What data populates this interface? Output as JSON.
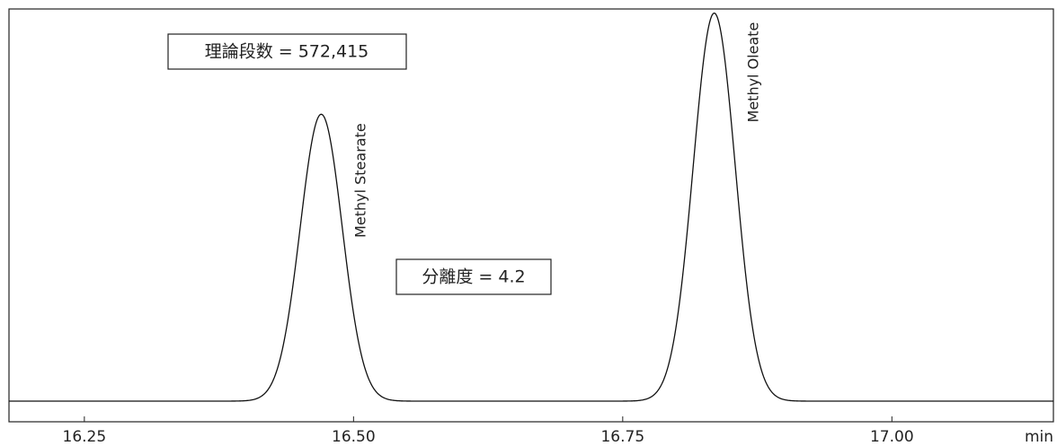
{
  "chart_data": {
    "type": "line",
    "xlabel": "min",
    "ylabel": "",
    "xlim": [
      16.18,
      17.15
    ],
    "ylim": [
      0,
      1
    ],
    "x_ticks": [
      16.25,
      16.5,
      16.75,
      17.0
    ],
    "x_tick_labels": [
      "16.25",
      "16.50",
      "16.75",
      "17.00"
    ],
    "grid": false,
    "baseline": 0.05,
    "series": [
      {
        "peaks": [
          {
            "name": "Methyl Stearate",
            "retention_time": 16.47,
            "height": 0.745,
            "sigma": 0.0195
          },
          {
            "name": "Methyl Oleate",
            "retention_time": 16.835,
            "height": 0.99,
            "sigma": 0.0195
          }
        ]
      }
    ],
    "annotations": [
      {
        "text": "理論段数 = 572,415"
      },
      {
        "text": "分離度 = 4.2"
      }
    ]
  }
}
